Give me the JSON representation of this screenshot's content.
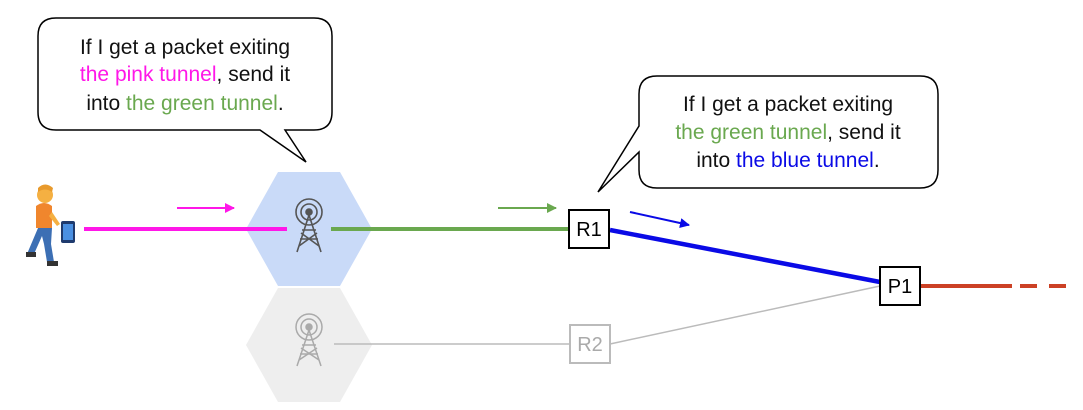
{
  "colors": {
    "pink": "#ff17e8",
    "green": "#6aa84f",
    "blue": "#0a0ae6",
    "red": "#cc4125",
    "tower_active_fill": "#c9daf8",
    "tower_inactive_fill": "#eeeeee",
    "inactive_gray": "#bbbbbb"
  },
  "icons": {
    "user": "person-walking-with-phone-icon",
    "tower_active": "radio-tower-icon",
    "tower_inactive": "radio-tower-icon"
  },
  "bubble1": {
    "line1": "If I get a packet exiting",
    "line2_highlight": "the pink tunnel",
    "line2_rest": ", send it",
    "line3_prefix": "into ",
    "line3_highlight": "the green tunnel",
    "line3_suffix": "."
  },
  "bubble2": {
    "line1": "If I get a packet exiting",
    "line2_highlight": "the green tunnel",
    "line2_rest": ", send it",
    "line3_prefix": "into ",
    "line3_highlight": "the blue tunnel",
    "line3_suffix": "."
  },
  "nodes": {
    "r1": "R1",
    "r2": "R2",
    "p1": "P1"
  }
}
